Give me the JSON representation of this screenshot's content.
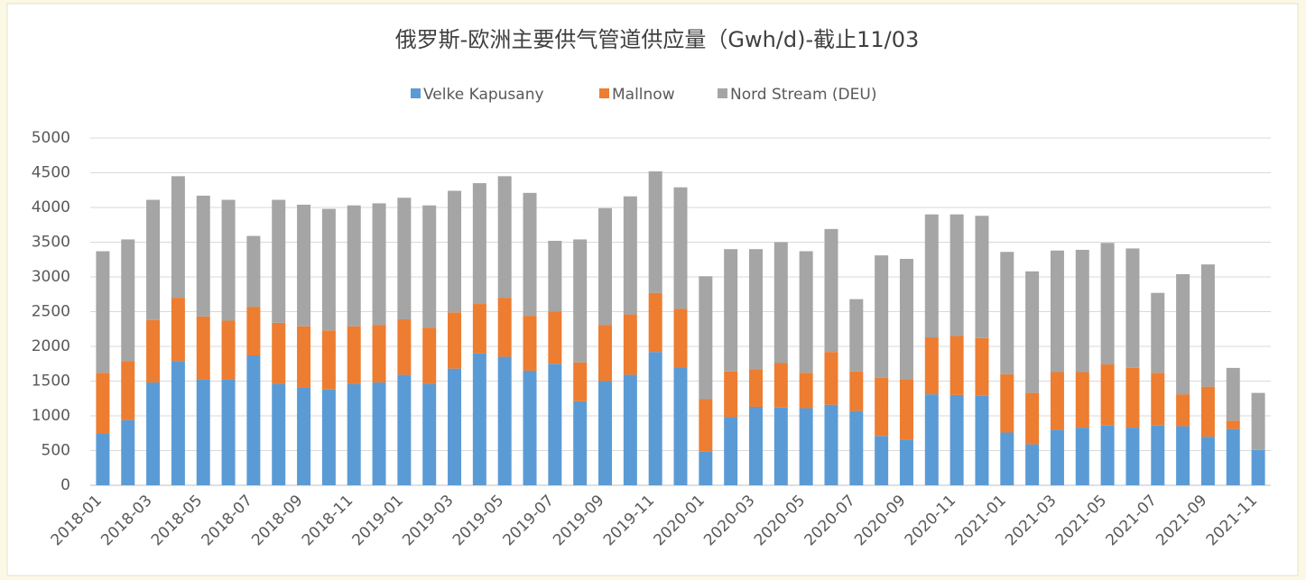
{
  "chart_data": {
    "type": "stacked_bar",
    "title": "俄罗斯-欧洲主要供气管道供应量（Gwh/d)-截止11/03",
    "categories": [
      "2018-01",
      null,
      "2018-03",
      null,
      "2018-05",
      null,
      "2018-07",
      null,
      "2018-09",
      null,
      "2018-11",
      null,
      "2019-01",
      null,
      "2019-03",
      null,
      "2019-05",
      null,
      "2019-07",
      null,
      "2019-09",
      null,
      "2019-11",
      null,
      "2020-01",
      null,
      "2020-03",
      null,
      "2020-05",
      null,
      "2020-07",
      null,
      "2020-09",
      null,
      "2020-11",
      null,
      "2021-01",
      null,
      "2021-03",
      null,
      "2021-05",
      null,
      "2021-07",
      null,
      "2021-09",
      null,
      "2021-11"
    ],
    "series": [
      {
        "name": "Velke Kapusany",
        "color": "#5b9bd5",
        "values": [
          740,
          940,
          1480,
          1790,
          1520,
          1520,
          1870,
          1460,
          1410,
          1380,
          1460,
          1480,
          1590,
          1460,
          1680,
          1900,
          1850,
          1650,
          1750,
          1210,
          1500,
          1590,
          1920,
          1700,
          490,
          980,
          1130,
          1120,
          1110,
          1160,
          1070,
          710,
          660,
          1310,
          1300,
          1290,
          760,
          590,
          800,
          830,
          860,
          830,
          860,
          850,
          700,
          810,
          510
        ]
      },
      {
        "name": "Mallnow",
        "color": "#ed7d31",
        "values": [
          880,
          850,
          900,
          910,
          910,
          850,
          700,
          880,
          880,
          850,
          830,
          830,
          800,
          810,
          810,
          710,
          850,
          790,
          750,
          560,
          810,
          870,
          850,
          840,
          750,
          660,
          540,
          640,
          510,
          760,
          570,
          840,
          870,
          820,
          850,
          830,
          840,
          740,
          830,
          800,
          880,
          860,
          760,
          460,
          720,
          120,
          0
        ]
      },
      {
        "name": "Nord Stream (DEU)",
        "color": "#a5a5a5",
        "values": [
          1750,
          1750,
          1730,
          1750,
          1740,
          1740,
          1020,
          1770,
          1750,
          1750,
          1740,
          1750,
          1750,
          1760,
          1750,
          1740,
          1750,
          1770,
          1020,
          1770,
          1680,
          1700,
          1750,
          1750,
          1770,
          1760,
          1730,
          1740,
          1750,
          1770,
          1040,
          1760,
          1730,
          1770,
          1750,
          1760,
          1760,
          1750,
          1750,
          1760,
          1750,
          1720,
          1150,
          1730,
          1760,
          760,
          820
        ]
      }
    ],
    "ylim": [
      0,
      5000
    ],
    "yticks": [
      0,
      500,
      1000,
      1500,
      2000,
      2500,
      3000,
      3500,
      4000,
      4500,
      5000
    ],
    "grid": true,
    "legend": "top"
  }
}
